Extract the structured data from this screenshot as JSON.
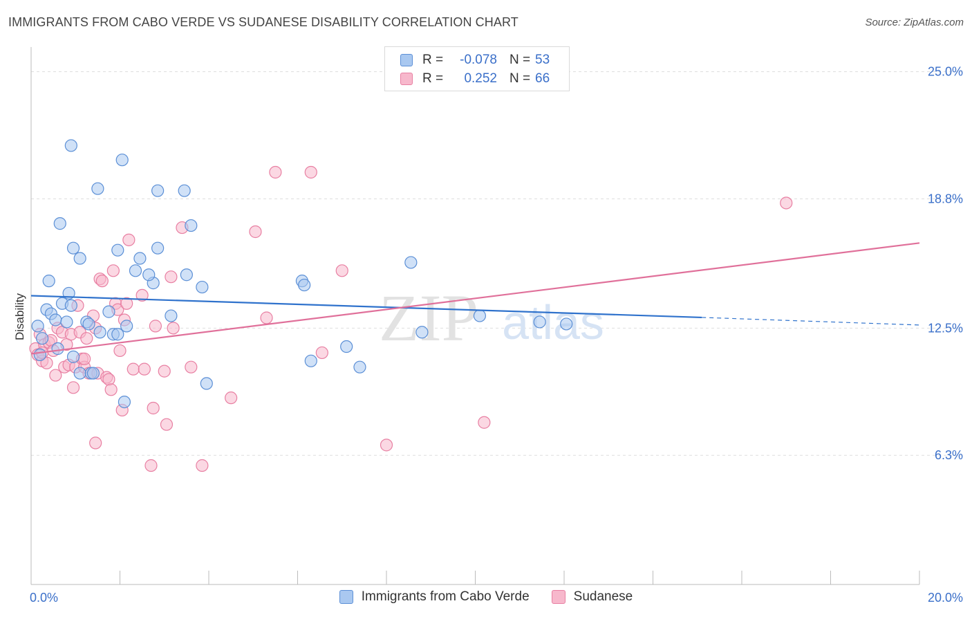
{
  "header": {
    "title": "IMMIGRANTS FROM CABO VERDE VS SUDANESE DISABILITY CORRELATION CHART",
    "source": "Source: ZipAtlas.com"
  },
  "legend": {
    "series": [
      {
        "r_label": "R =",
        "r_value": "-0.078",
        "n_label": "N =",
        "n_value": "53"
      },
      {
        "r_label": "R =",
        "r_value": "0.252",
        "n_label": "N =",
        "n_value": "66"
      }
    ]
  },
  "bottom_legend": {
    "items": [
      {
        "label": "Immigrants from Cabo Verde"
      },
      {
        "label": "Sudanese"
      }
    ]
  },
  "watermark": {
    "zip": "ZIP",
    "atlas": "atlas"
  },
  "colors": {
    "blue_fill": "#a9c8f0",
    "blue_stroke": "#5b8fd6",
    "blue_line": "#2f72cc",
    "pink_fill": "#f7b8cc",
    "pink_stroke": "#e87fa2",
    "pink_line": "#e0709a",
    "axis_label": "#3a6fc9"
  },
  "chart_data": {
    "type": "scatter",
    "title": "IMMIGRANTS FROM CABO VERDE VS SUDANESE DISABILITY CORRELATION CHART",
    "xlabel": "",
    "ylabel": "Disability",
    "xlim": [
      0,
      20
    ],
    "ylim": [
      0,
      25.9
    ],
    "x_tick_labels": {
      "left": "0.0%",
      "right": "20.0%"
    },
    "y_ticks": [
      {
        "value": 6.3,
        "label": "6.3%"
      },
      {
        "value": 12.5,
        "label": "12.5%"
      },
      {
        "value": 18.8,
        "label": "18.8%"
      },
      {
        "value": 25.0,
        "label": "25.0%"
      }
    ],
    "series": [
      {
        "name": "Immigrants from Cabo Verde",
        "r": -0.078,
        "n": 53,
        "trend": {
          "x0": 0.0,
          "y0": 14.08,
          "x1": 15.1,
          "y1": 13.02,
          "dash_to_x": 20.0,
          "dash_to_y": 12.65
        },
        "points": [
          [
            0.15,
            12.6
          ],
          [
            0.25,
            12.0
          ],
          [
            0.35,
            13.4
          ],
          [
            0.45,
            13.2
          ],
          [
            0.55,
            12.9
          ],
          [
            0.6,
            11.5
          ],
          [
            0.8,
            12.8
          ],
          [
            0.7,
            13.7
          ],
          [
            0.85,
            14.2
          ],
          [
            0.9,
            13.6
          ],
          [
            0.95,
            11.1
          ],
          [
            1.1,
            10.3
          ],
          [
            1.25,
            12.8
          ],
          [
            1.35,
            10.3
          ],
          [
            1.55,
            12.3
          ],
          [
            1.75,
            13.3
          ],
          [
            1.85,
            12.2
          ],
          [
            1.95,
            12.2
          ],
          [
            2.15,
            12.6
          ],
          [
            2.35,
            15.3
          ],
          [
            2.75,
            14.7
          ],
          [
            2.65,
            15.1
          ],
          [
            0.4,
            14.8
          ],
          [
            0.65,
            17.6
          ],
          [
            0.95,
            16.4
          ],
          [
            1.1,
            15.9
          ],
          [
            1.5,
            19.3
          ],
          [
            1.95,
            16.3
          ],
          [
            2.45,
            15.9
          ],
          [
            2.85,
            16.4
          ],
          [
            3.15,
            13.1
          ],
          [
            3.5,
            15.1
          ],
          [
            3.6,
            17.5
          ],
          [
            3.85,
            14.5
          ],
          [
            3.95,
            9.8
          ],
          [
            0.9,
            21.4
          ],
          [
            2.05,
            20.7
          ],
          [
            2.85,
            19.2
          ],
          [
            3.45,
            19.2
          ],
          [
            6.1,
            14.8
          ],
          [
            6.15,
            14.6
          ],
          [
            6.3,
            10.9
          ],
          [
            7.1,
            11.6
          ],
          [
            7.4,
            10.6
          ],
          [
            8.55,
            15.7
          ],
          [
            8.8,
            12.3
          ],
          [
            10.1,
            13.1
          ],
          [
            11.45,
            12.8
          ],
          [
            12.05,
            12.7
          ],
          [
            2.1,
            8.9
          ],
          [
            1.3,
            12.7
          ],
          [
            0.2,
            11.2
          ],
          [
            1.4,
            10.3
          ]
        ]
      },
      {
        "name": "Sudanese",
        "r": 0.252,
        "n": 66,
        "trend": {
          "x0": 0.0,
          "y0": 11.25,
          "x1": 20.0,
          "y1": 16.65
        },
        "points": [
          [
            0.1,
            11.5
          ],
          [
            0.15,
            11.2
          ],
          [
            0.2,
            12.2
          ],
          [
            0.25,
            10.9
          ],
          [
            0.3,
            11.7
          ],
          [
            0.35,
            10.8
          ],
          [
            0.4,
            11.8
          ],
          [
            0.45,
            11.9
          ],
          [
            0.5,
            11.4
          ],
          [
            0.55,
            10.2
          ],
          [
            0.6,
            12.5
          ],
          [
            0.7,
            12.3
          ],
          [
            0.75,
            10.6
          ],
          [
            0.8,
            11.7
          ],
          [
            0.85,
            10.7
          ],
          [
            0.9,
            12.2
          ],
          [
            0.95,
            9.6
          ],
          [
            1.0,
            10.6
          ],
          [
            1.05,
            13.6
          ],
          [
            1.1,
            12.3
          ],
          [
            1.15,
            11.0
          ],
          [
            1.2,
            10.6
          ],
          [
            1.25,
            12.0
          ],
          [
            1.3,
            10.3
          ],
          [
            1.4,
            13.1
          ],
          [
            1.45,
            12.5
          ],
          [
            1.5,
            10.3
          ],
          [
            1.55,
            14.9
          ],
          [
            1.6,
            14.8
          ],
          [
            1.7,
            10.1
          ],
          [
            1.75,
            10.0
          ],
          [
            1.8,
            9.5
          ],
          [
            1.85,
            15.3
          ],
          [
            1.9,
            13.7
          ],
          [
            1.95,
            13.4
          ],
          [
            2.0,
            11.4
          ],
          [
            2.05,
            8.5
          ],
          [
            2.1,
            12.9
          ],
          [
            2.15,
            13.7
          ],
          [
            2.2,
            16.8
          ],
          [
            2.3,
            10.5
          ],
          [
            2.5,
            14.1
          ],
          [
            2.55,
            10.5
          ],
          [
            2.7,
            5.8
          ],
          [
            2.75,
            8.6
          ],
          [
            2.8,
            12.6
          ],
          [
            3.0,
            10.4
          ],
          [
            3.05,
            7.8
          ],
          [
            3.15,
            15.0
          ],
          [
            3.2,
            12.5
          ],
          [
            3.4,
            17.4
          ],
          [
            3.6,
            10.6
          ],
          [
            3.85,
            5.8
          ],
          [
            4.5,
            9.1
          ],
          [
            5.05,
            17.2
          ],
          [
            5.3,
            13.0
          ],
          [
            5.5,
            20.1
          ],
          [
            6.3,
            20.1
          ],
          [
            6.55,
            11.3
          ],
          [
            7.0,
            15.3
          ],
          [
            8.0,
            6.8
          ],
          [
            10.2,
            7.9
          ],
          [
            17.0,
            18.6
          ],
          [
            1.45,
            6.9
          ],
          [
            0.25,
            11.3
          ],
          [
            1.2,
            11.0
          ]
        ]
      }
    ]
  }
}
